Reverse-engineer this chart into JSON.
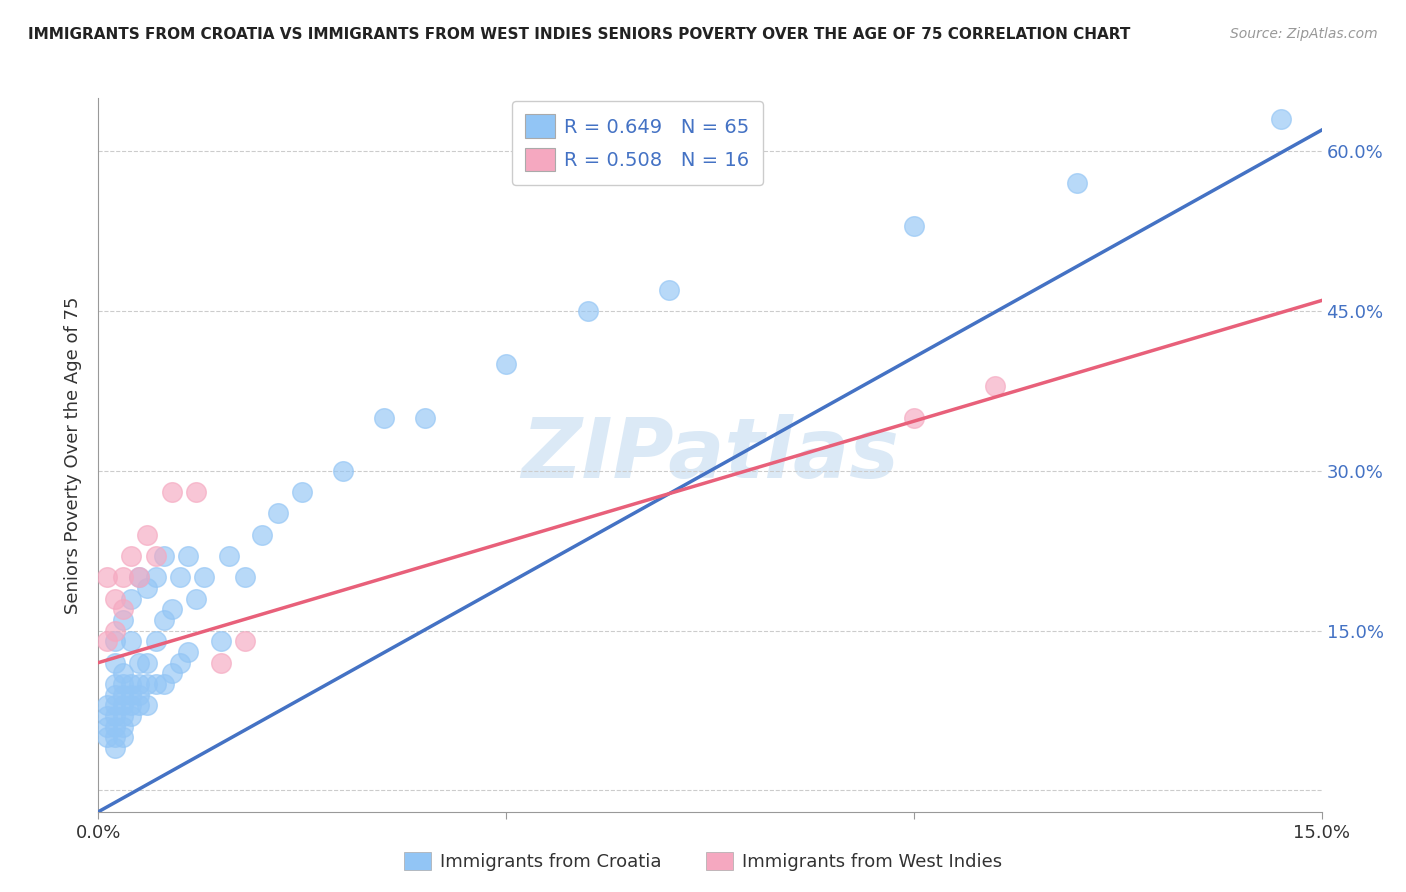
{
  "title": "IMMIGRANTS FROM CROATIA VS IMMIGRANTS FROM WEST INDIES SENIORS POVERTY OVER THE AGE OF 75 CORRELATION CHART",
  "source": "Source: ZipAtlas.com",
  "ylabel": "Seniors Poverty Over the Age of 75",
  "xlabel_croatia": "Immigrants from Croatia",
  "xlabel_west_indies": "Immigrants from West Indies",
  "xlim": [
    0.0,
    0.15
  ],
  "ylim": [
    -0.02,
    0.65
  ],
  "yticks": [
    0.0,
    0.15,
    0.3,
    0.45,
    0.6
  ],
  "ytick_labels_right": [
    "",
    "15.0%",
    "30.0%",
    "45.0%",
    "60.0%"
  ],
  "xticks": [
    0.0,
    0.05,
    0.1,
    0.15
  ],
  "xtick_labels": [
    "0.0%",
    "",
    "",
    "15.0%"
  ],
  "croatia_color": "#92C5F5",
  "west_indies_color": "#F5A8C0",
  "croatia_line_color": "#4472C4",
  "west_indies_line_color": "#E8607A",
  "legend_R_croatia": "0.649",
  "legend_N_croatia": "65",
  "legend_R_west_indies": "0.508",
  "legend_N_west_indies": "16",
  "watermark": "ZIPatlas",
  "background_color": "#ffffff",
  "grid_color": "#cccccc",
  "croatia_scatter_x": [
    0.001,
    0.001,
    0.001,
    0.001,
    0.002,
    0.002,
    0.002,
    0.002,
    0.002,
    0.002,
    0.002,
    0.002,
    0.002,
    0.003,
    0.003,
    0.003,
    0.003,
    0.003,
    0.003,
    0.003,
    0.003,
    0.004,
    0.004,
    0.004,
    0.004,
    0.004,
    0.004,
    0.005,
    0.005,
    0.005,
    0.005,
    0.005,
    0.006,
    0.006,
    0.006,
    0.006,
    0.007,
    0.007,
    0.007,
    0.008,
    0.008,
    0.008,
    0.009,
    0.009,
    0.01,
    0.01,
    0.011,
    0.011,
    0.012,
    0.013,
    0.015,
    0.016,
    0.018,
    0.02,
    0.022,
    0.025,
    0.03,
    0.035,
    0.04,
    0.05,
    0.06,
    0.07,
    0.1,
    0.12,
    0.145
  ],
  "croatia_scatter_y": [
    0.05,
    0.06,
    0.07,
    0.08,
    0.04,
    0.05,
    0.06,
    0.07,
    0.08,
    0.09,
    0.1,
    0.12,
    0.14,
    0.05,
    0.06,
    0.07,
    0.08,
    0.09,
    0.1,
    0.11,
    0.16,
    0.07,
    0.08,
    0.09,
    0.1,
    0.14,
    0.18,
    0.08,
    0.09,
    0.1,
    0.12,
    0.2,
    0.08,
    0.1,
    0.12,
    0.19,
    0.1,
    0.14,
    0.2,
    0.1,
    0.16,
    0.22,
    0.11,
    0.17,
    0.12,
    0.2,
    0.13,
    0.22,
    0.18,
    0.2,
    0.14,
    0.22,
    0.2,
    0.24,
    0.26,
    0.28,
    0.3,
    0.35,
    0.35,
    0.4,
    0.45,
    0.47,
    0.53,
    0.57,
    0.63
  ],
  "west_indies_scatter_x": [
    0.001,
    0.001,
    0.002,
    0.002,
    0.003,
    0.003,
    0.004,
    0.005,
    0.006,
    0.007,
    0.009,
    0.012,
    0.015,
    0.018,
    0.1,
    0.11
  ],
  "west_indies_scatter_y": [
    0.14,
    0.2,
    0.15,
    0.18,
    0.17,
    0.2,
    0.22,
    0.2,
    0.24,
    0.22,
    0.28,
    0.28,
    0.12,
    0.14,
    0.35,
    0.38
  ]
}
